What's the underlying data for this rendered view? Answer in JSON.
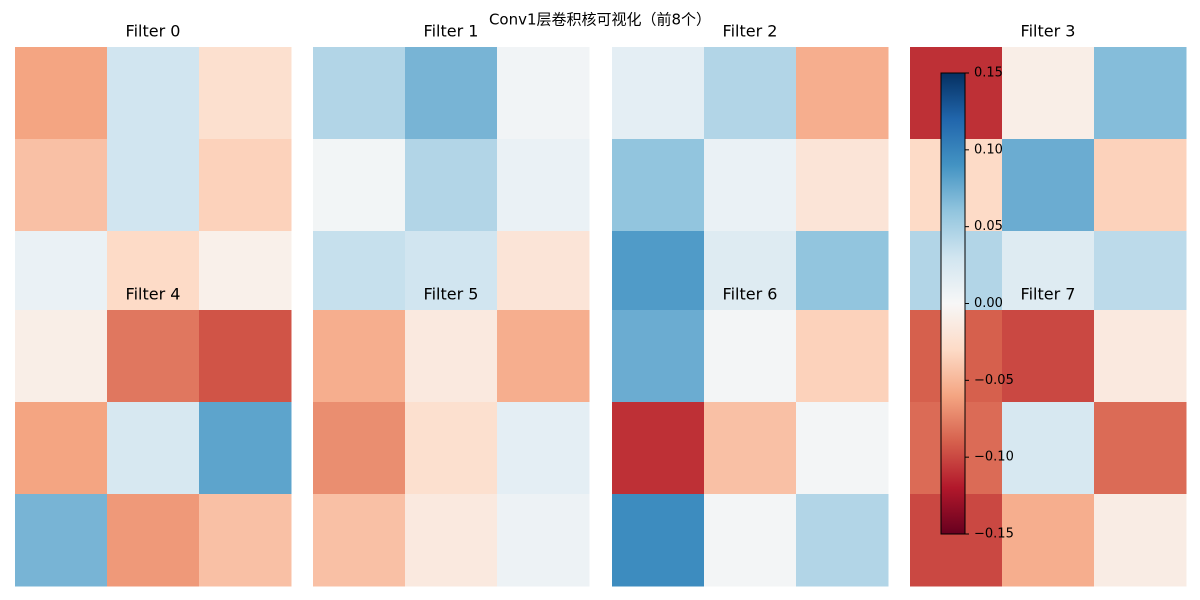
{
  "chart_data": {
    "type": "heatmap",
    "title": "Conv1层卷积核可视化（前8个）",
    "colormap": "RdBu_r",
    "clim": [
      -0.15,
      0.15
    ],
    "colorbar_ticks": [
      {
        "value": 0.15,
        "label": "0.15"
      },
      {
        "value": 0.1,
        "label": "0.10"
      },
      {
        "value": 0.05,
        "label": "0.05"
      },
      {
        "value": 0,
        "label": "0.00"
      },
      {
        "value": -0.05,
        "label": "−0.05"
      },
      {
        "value": -0.1,
        "label": "−0.10"
      },
      {
        "value": -0.15,
        "label": "−0.15"
      }
    ],
    "panels": [
      {
        "title": "Filter 0",
        "values": [
          [
            -0.06,
            0.03,
            -0.025
          ],
          [
            -0.045,
            0.03,
            -0.035
          ],
          [
            0.01,
            -0.03,
            -0.008
          ]
        ]
      },
      {
        "title": "Filter 1",
        "values": [
          [
            0.045,
            0.07,
            0.005
          ],
          [
            0.004,
            0.045,
            0.01
          ],
          [
            0.035,
            0.03,
            -0.02
          ]
        ]
      },
      {
        "title": "Filter 2",
        "values": [
          [
            0.015,
            0.045,
            -0.055
          ],
          [
            0.06,
            0.01,
            -0.02
          ],
          [
            0.085,
            0.02,
            0.06
          ]
        ]
      },
      {
        "title": "Filter 3",
        "values": [
          [
            -0.11,
            -0.01,
            0.065
          ],
          [
            -0.03,
            0.075,
            -0.035
          ],
          [
            0.045,
            0.02,
            0.04
          ]
        ]
      },
      {
        "title": "Filter 4",
        "values": [
          [
            -0.01,
            -0.08,
            -0.095
          ],
          [
            -0.06,
            0.025,
            0.08
          ],
          [
            0.07,
            -0.065,
            -0.045
          ]
        ]
      },
      {
        "title": "Filter 5",
        "values": [
          [
            -0.055,
            -0.015,
            -0.055
          ],
          [
            -0.07,
            -0.025,
            0.015
          ],
          [
            -0.045,
            -0.015,
            0.008
          ]
        ]
      },
      {
        "title": "Filter 6",
        "values": [
          [
            0.075,
            0.003,
            -0.035
          ],
          [
            -0.11,
            -0.045,
            0.003
          ],
          [
            0.095,
            0.003,
            0.045
          ]
        ]
      },
      {
        "title": "Filter 7",
        "values": [
          [
            -0.09,
            -0.1,
            -0.015
          ],
          [
            -0.085,
            0.025,
            -0.085
          ],
          [
            -0.1,
            -0.055,
            -0.012
          ]
        ]
      }
    ]
  }
}
